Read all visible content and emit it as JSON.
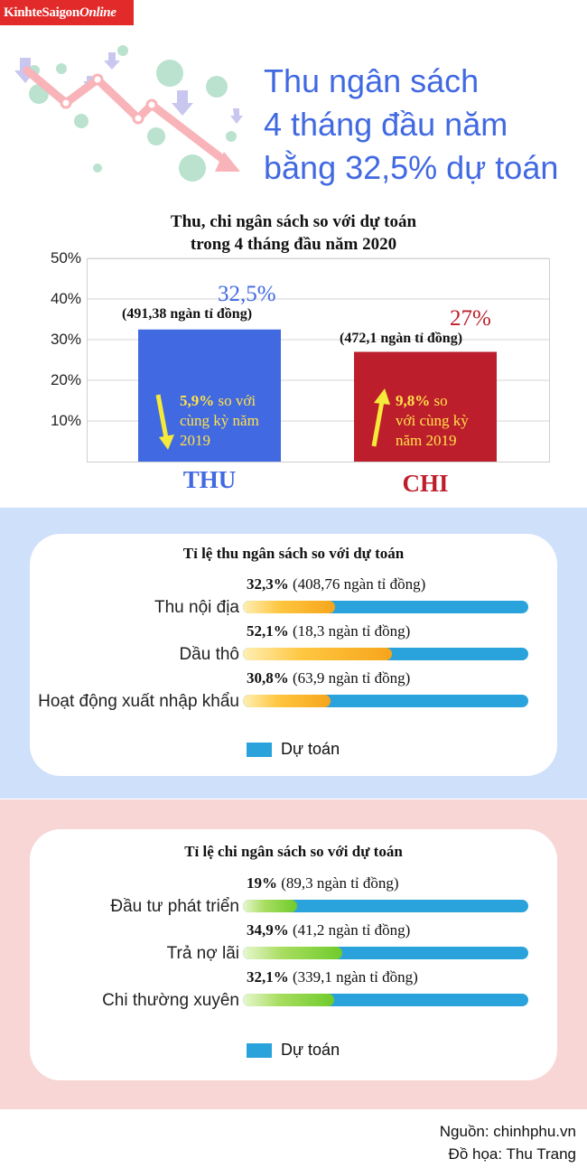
{
  "logo": {
    "main": "KinhteSaigon",
    "suffix": "Online"
  },
  "headline": [
    "Thu ngân sách",
    "4 tháng đầu năm",
    "bằng 32,5% dự toán"
  ],
  "colors": {
    "thu": "#4169e1",
    "chi": "#bd1e2b",
    "dutoan": "#2aa3dc",
    "note": "#ffe24a"
  },
  "chart_data": [
    {
      "type": "bar",
      "title": "Thu, chi ngân sách so với dự toán",
      "subtitle": "trong 4 tháng đầu năm 2020",
      "categories": [
        "THU",
        "CHI"
      ],
      "values": [
        32.5,
        27
      ],
      "value_labels": [
        "32,5%",
        "27%"
      ],
      "amount_labels": [
        "(491,38 ngàn tỉ đồng)",
        "(472,1 ngàn tỉ đồng)"
      ],
      "notes": [
        {
          "bold": "5,9%",
          "rest1": " so với",
          "rest2": "cùng kỳ năm",
          "rest3": "2019",
          "arrow": "down"
        },
        {
          "bold": "9,8%",
          "rest1": " so",
          "rest2": "với cùng kỳ",
          "rest3": "năm 2019",
          "arrow": "up"
        }
      ],
      "yticks": [
        "10%",
        "20%",
        "30%",
        "40%",
        "50%"
      ],
      "ylim": [
        0,
        50
      ],
      "grid": true
    },
    {
      "type": "bar",
      "title": "Tỉ lệ thu ngân sách so với dự toán",
      "categories": [
        "Thu nội địa",
        "Dầu thô",
        "Hoạt động xuất nhập khẩu"
      ],
      "values": [
        32.3,
        52.1,
        30.8
      ],
      "value_labels": [
        "32,3%",
        "52,1%",
        "30,8%"
      ],
      "amount_labels": [
        "(408,76 ngàn tỉ đồng)",
        "(18,3 ngàn tỉ đồng)",
        "(63,9 ngàn tỉ đồng)"
      ],
      "legend": "Dự toán"
    },
    {
      "type": "bar",
      "title": "Tỉ lệ chi ngân sách so với dự toán",
      "categories": [
        "Đầu tư phát triển",
        "Trả nợ lãi",
        "Chi thường xuyên"
      ],
      "values": [
        19,
        34.9,
        32.1
      ],
      "value_labels": [
        "19%",
        "34,9%",
        "32,1%"
      ],
      "amount_labels": [
        "(89,3 ngàn tỉ đồng)",
        "(41,2 ngàn tỉ đồng)",
        "(339,1 ngàn tỉ đồng)"
      ],
      "legend": "Dự toán"
    }
  ],
  "footer": {
    "source": "Nguồn: chinhphu.vn",
    "credit": "Đồ họa: Thu Trang"
  }
}
